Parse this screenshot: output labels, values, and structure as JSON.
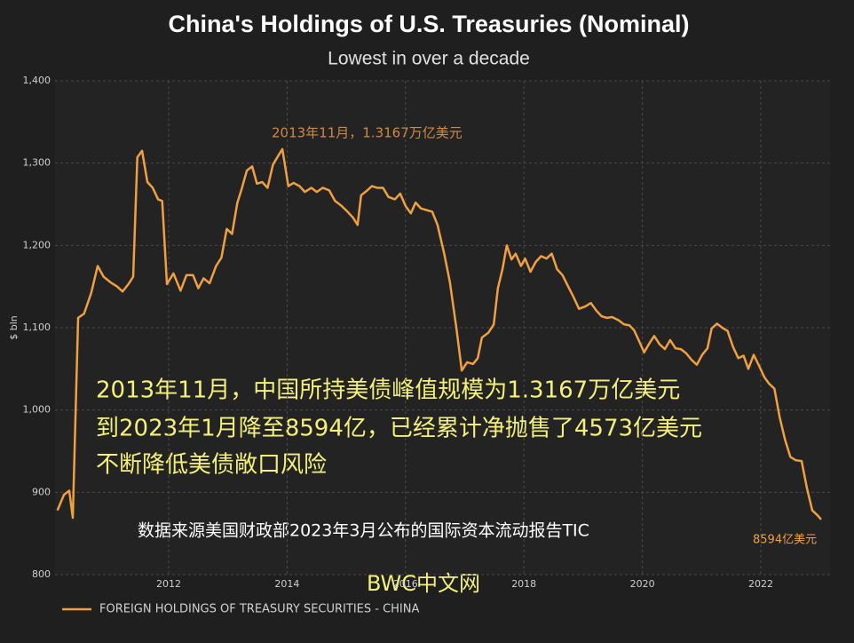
{
  "chart_data": {
    "type": "line",
    "title": "China's Holdings of U.S. Treasuries (Nominal)",
    "subtitle": "Lowest in over a decade",
    "y_label": "$ bln",
    "x": [
      2010.12,
      2010.23,
      2010.32,
      2010.38,
      2010.47,
      2010.57,
      2010.69,
      2010.8,
      2010.9,
      2011.02,
      2011.13,
      2011.22,
      2011.32,
      2011.4,
      2011.47,
      2011.55,
      2011.64,
      2011.73,
      2011.82,
      2011.89,
      2011.97,
      2012.08,
      2012.2,
      2012.3,
      2012.41,
      2012.5,
      2012.59,
      2012.69,
      2012.8,
      2012.89,
      2012.98,
      2013.07,
      2013.16,
      2013.23,
      2013.32,
      2013.41,
      2013.49,
      2013.58,
      2013.67,
      2013.76,
      2013.85,
      2013.92,
      2014.02,
      2014.11,
      2014.21,
      2014.3,
      2014.41,
      2014.5,
      2014.6,
      2014.71,
      2014.81,
      2014.92,
      2015.02,
      2015.11,
      2015.19,
      2015.25,
      2015.34,
      2015.43,
      2015.52,
      2015.62,
      2015.71,
      2015.82,
      2015.91,
      2016.0,
      2016.09,
      2016.17,
      2016.26,
      2016.35,
      2016.45,
      2016.54,
      2016.65,
      2016.75,
      2016.86,
      2016.95,
      2017.04,
      2017.14,
      2017.22,
      2017.29,
      2017.4,
      2017.49,
      2017.56,
      2017.64,
      2017.71,
      2017.79,
      2017.86,
      2017.95,
      2018.02,
      2018.11,
      2018.2,
      2018.29,
      2018.38,
      2018.47,
      2018.56,
      2018.65,
      2018.74,
      2018.84,
      2018.93,
      2019.04,
      2019.13,
      2019.22,
      2019.31,
      2019.4,
      2019.49,
      2019.6,
      2019.69,
      2019.78,
      2019.86,
      2019.95,
      2020.03,
      2020.11,
      2020.2,
      2020.29,
      2020.38,
      2020.47,
      2020.56,
      2020.65,
      2020.74,
      2020.83,
      2020.92,
      2021.01,
      2021.1,
      2021.17,
      2021.26,
      2021.35,
      2021.44,
      2021.53,
      2021.62,
      2021.71,
      2021.79,
      2021.88,
      2021.97,
      2022.06,
      2022.14,
      2022.23,
      2022.32,
      2022.41,
      2022.5,
      2022.59,
      2022.69,
      2022.78,
      2022.87,
      2022.96,
      2023.02
    ],
    "series": [
      {
        "name": "FOREIGN HOLDINGS OF TREASURY SECURITIES - CHINA",
        "color": "#f0a040",
        "values": [
          878,
          897,
          902,
          869,
          1112,
          1117,
          1142,
          1175,
          1162,
          1155,
          1150,
          1144,
          1153,
          1162,
          1307,
          1315,
          1277,
          1270,
          1256,
          1254,
          1153,
          1166,
          1145,
          1164,
          1164,
          1148,
          1160,
          1154,
          1175,
          1185,
          1220,
          1214,
          1252,
          1268,
          1291,
          1296,
          1275,
          1277,
          1270,
          1298,
          1309,
          1317,
          1272,
          1276,
          1272,
          1265,
          1270,
          1265,
          1270,
          1267,
          1254,
          1248,
          1241,
          1234,
          1225,
          1261,
          1266,
          1272,
          1270,
          1270,
          1259,
          1256,
          1263,
          1248,
          1239,
          1252,
          1245,
          1243,
          1241,
          1225,
          1191,
          1155,
          1099,
          1048,
          1058,
          1056,
          1063,
          1088,
          1094,
          1104,
          1148,
          1172,
          1200,
          1183,
          1190,
          1175,
          1184,
          1168,
          1180,
          1187,
          1184,
          1190,
          1171,
          1164,
          1151,
          1137,
          1123,
          1126,
          1130,
          1121,
          1114,
          1112,
          1113,
          1109,
          1104,
          1103,
          1097,
          1083,
          1070,
          1080,
          1090,
          1080,
          1074,
          1085,
          1075,
          1074,
          1069,
          1061,
          1055,
          1067,
          1075,
          1099,
          1105,
          1100,
          1096,
          1077,
          1063,
          1066,
          1050,
          1067,
          1054,
          1040,
          1032,
          1026,
          991,
          964,
          943,
          939,
          938,
          905,
          878,
          872,
          867
        ]
      }
    ],
    "xlim": [
      2010.08,
      2023.17
    ],
    "xticks": [
      2012,
      2014,
      2016,
      2018,
      2020,
      2022
    ],
    "ylim": [
      800,
      1400
    ],
    "yticks": [
      800,
      900,
      {
        "value": 1000,
        "label": "1,000"
      },
      {
        "value": 1100,
        "label": "1,100"
      },
      {
        "value": 1200,
        "label": "1,200"
      },
      {
        "value": 1300,
        "label": "1,300"
      },
      {
        "value": 1400,
        "label": "1,400"
      }
    ],
    "grid": true,
    "annotations": [
      "2013年11月，1.3167万亿美元",
      "8594亿美元"
    ],
    "overlay_text": [
      "2013年11月，中国所持美债峰值规模为1.3167万亿美元",
      "到2023年1月降至8594亿，已经累计净抛售了4573亿美元",
      "不断降低美债敞口风险"
    ],
    "source": "数据来源美国财政部2023年3月公布的国际资本流动报告TIC",
    "watermark": "BWC中文网"
  }
}
